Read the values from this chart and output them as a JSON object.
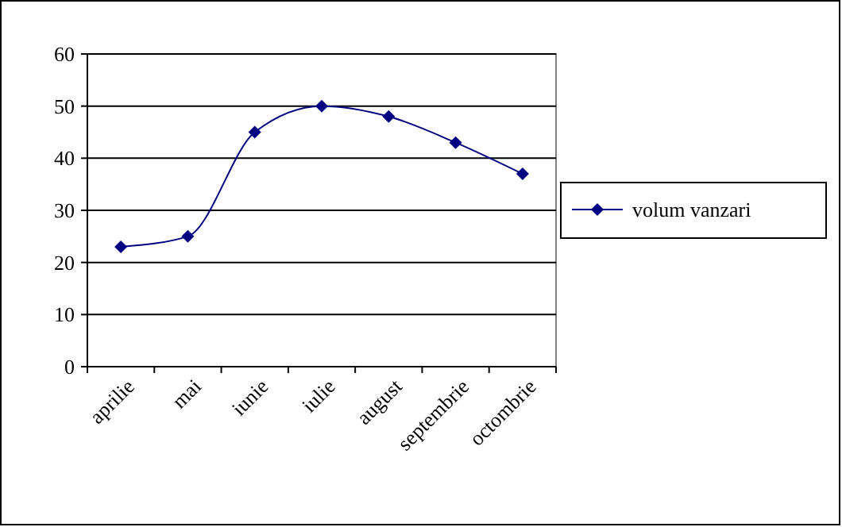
{
  "chart_data": {
    "type": "line",
    "categories": [
      "aprilie",
      "mai",
      "iunie",
      "iulie",
      "august",
      "septembrie",
      "octombrie"
    ],
    "series": [
      {
        "name": "volum vanzari",
        "color": "#000080",
        "values": [
          23,
          25,
          45,
          50,
          48,
          43,
          37
        ]
      }
    ],
    "ylim": [
      0,
      60
    ],
    "yticks": [
      0,
      10,
      20,
      30,
      40,
      50,
      60
    ],
    "grid": "y",
    "legend": "right",
    "marker": "diamond",
    "line_style": "solid"
  }
}
